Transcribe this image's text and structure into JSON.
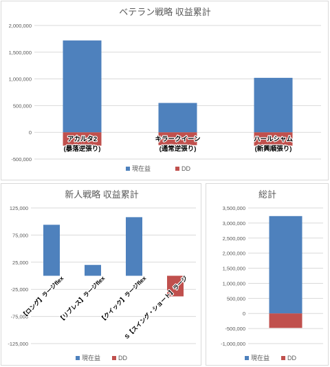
{
  "colors": {
    "profit": "#4e81bd",
    "dd": "#c0504d",
    "grid": "#d9d9d9",
    "text": "#595959"
  },
  "chart_data": [
    {
      "type": "bar",
      "title": "ベテラン戦略 収益累計",
      "categories": [
        [
          "アカルタ2",
          "(暴落逆張り)"
        ],
        [
          "キラークイーン",
          "(通常逆張り)"
        ],
        [
          "ハールシャム",
          "(新興順張り)"
        ]
      ],
      "series": [
        {
          "name": "現在益",
          "values": [
            1720000,
            550000,
            1020000
          ]
        },
        {
          "name": "DD",
          "values": [
            -250000,
            -240000,
            -250000
          ]
        }
      ],
      "ylim": [
        -500000,
        2000000
      ],
      "yticks": [
        "-500,000",
        "0",
        "500,000",
        "1,000,000",
        "1,500,000",
        "2,000,000"
      ],
      "stacked": true,
      "grid": true,
      "legend": "bottom"
    },
    {
      "type": "bar",
      "title": "新人戦略 収益累計",
      "categories": [
        "【ロング】ラージflex",
        "【リブレス】ラージflex",
        "【クイック】ラージflex",
        "S【スイング・ショート】ラージ"
      ],
      "series": [
        {
          "name": "現在益",
          "values": [
            94000,
            20000,
            108000,
            0
          ]
        },
        {
          "name": "DD",
          "values": [
            0,
            0,
            0,
            -38000
          ]
        }
      ],
      "ylim": [
        -125000,
        125000
      ],
      "yticks": [
        "-125,000",
        "-75,000",
        "-25,000",
        "25,000",
        "75,000",
        "125,000"
      ],
      "stacked": true,
      "grid": true,
      "legend": "bottom"
    },
    {
      "type": "bar",
      "title": "総計",
      "categories": [
        ""
      ],
      "series": [
        {
          "name": "現在益",
          "values": [
            3230000
          ]
        },
        {
          "name": "DD",
          "values": [
            -480000
          ]
        }
      ],
      "ylim": [
        -1000000,
        3500000
      ],
      "yticks": [
        "-1,000,000",
        "-500,000",
        "0",
        "500,000",
        "1,000,000",
        "1,500,000",
        "2,000,000",
        "2,500,000",
        "3,000,000",
        "3,500,000"
      ],
      "stacked": true,
      "grid": true,
      "legend": "bottom"
    }
  ]
}
